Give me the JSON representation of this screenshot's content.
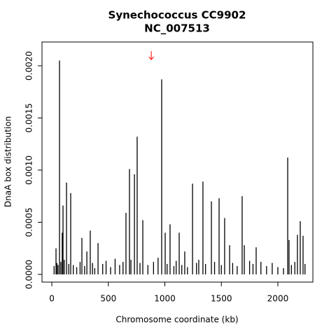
{
  "chart_data": {
    "type": "spike",
    "title": "Synechococcus CC9902",
    "subtitle": "NC_007513",
    "x_label": "Chromosome coordinate (kb)",
    "y_label": "DnaA box distribution",
    "color": "#000000",
    "x": [
      20,
      37,
      45,
      55,
      68,
      80,
      92,
      99,
      110,
      130,
      150,
      167,
      190,
      220,
      250,
      266,
      290,
      310,
      340,
      360,
      380,
      409,
      450,
      480,
      520,
      560,
      600,
      630,
      656,
      687,
      700,
      731,
      755,
      780,
      805,
      850,
      900,
      940,
      972,
      1003,
      1020,
      1046,
      1080,
      1100,
      1127,
      1150,
      1176,
      1200,
      1245,
      1280,
      1300,
      1337,
      1360,
      1412,
      1440,
      1480,
      1500,
      1529,
      1573,
      1600,
      1640,
      1684,
      1703,
      1750,
      1780,
      1808,
      1850,
      1900,
      1950,
      2000,
      2050,
      2087,
      2099,
      2120,
      2150,
      2173,
      2198,
      2223,
      2240
    ],
    "values": [
      8e-05,
      0.00025,
      0.00011,
      9e-05,
      0.00205,
      0.00012,
      0.0004,
      0.00066,
      0.00014,
      0.00088,
      0.0001,
      0.00078,
      9e-05,
      7e-05,
      0.00012,
      0.00035,
      8e-05,
      0.00022,
      0.00042,
      0.00011,
      6e-05,
      0.0003,
      0.0001,
      0.00013,
      7e-05,
      0.00015,
      9e-05,
      0.00012,
      0.00059,
      0.00101,
      0.00014,
      0.00096,
      0.00132,
      0.00011,
      0.00052,
      9e-05,
      0.00012,
      0.00016,
      0.00187,
      0.0004,
      0.0001,
      0.00048,
      8e-05,
      0.00013,
      0.0004,
      9e-05,
      0.00022,
      7e-05,
      0.00087,
      0.00011,
      0.00014,
      0.00089,
      0.0001,
      0.0007,
      0.00012,
      0.00073,
      9e-05,
      0.00054,
      0.00028,
      0.00011,
      8e-05,
      0.00075,
      0.00028,
      0.00013,
      0.0001,
      0.00026,
      0.00012,
      8e-05,
      0.00011,
      7e-05,
      6e-05,
      0.00112,
      0.00033,
      9e-05,
      0.00012,
      0.00038,
      0.00051,
      0.00037,
      0.0001
    ],
    "arrow": {
      "x": 880,
      "y": 0.0021,
      "color": "#ff0000"
    },
    "xlim": [
      -87,
      2310
    ],
    "xticks": [
      0,
      500,
      1000,
      1500,
      2000
    ],
    "ylim": [
      -7.38e-05,
      0.002228
    ],
    "yticks": [
      {
        "value": 0,
        "label": "0.0000"
      },
      {
        "value": 0.0005,
        "label": "0.0005"
      },
      {
        "value": 0.001,
        "label": "0.0010"
      },
      {
        "value": 0.0015,
        "label": "0.0015"
      },
      {
        "value": 0.002,
        "label": "0.0020"
      }
    ]
  }
}
